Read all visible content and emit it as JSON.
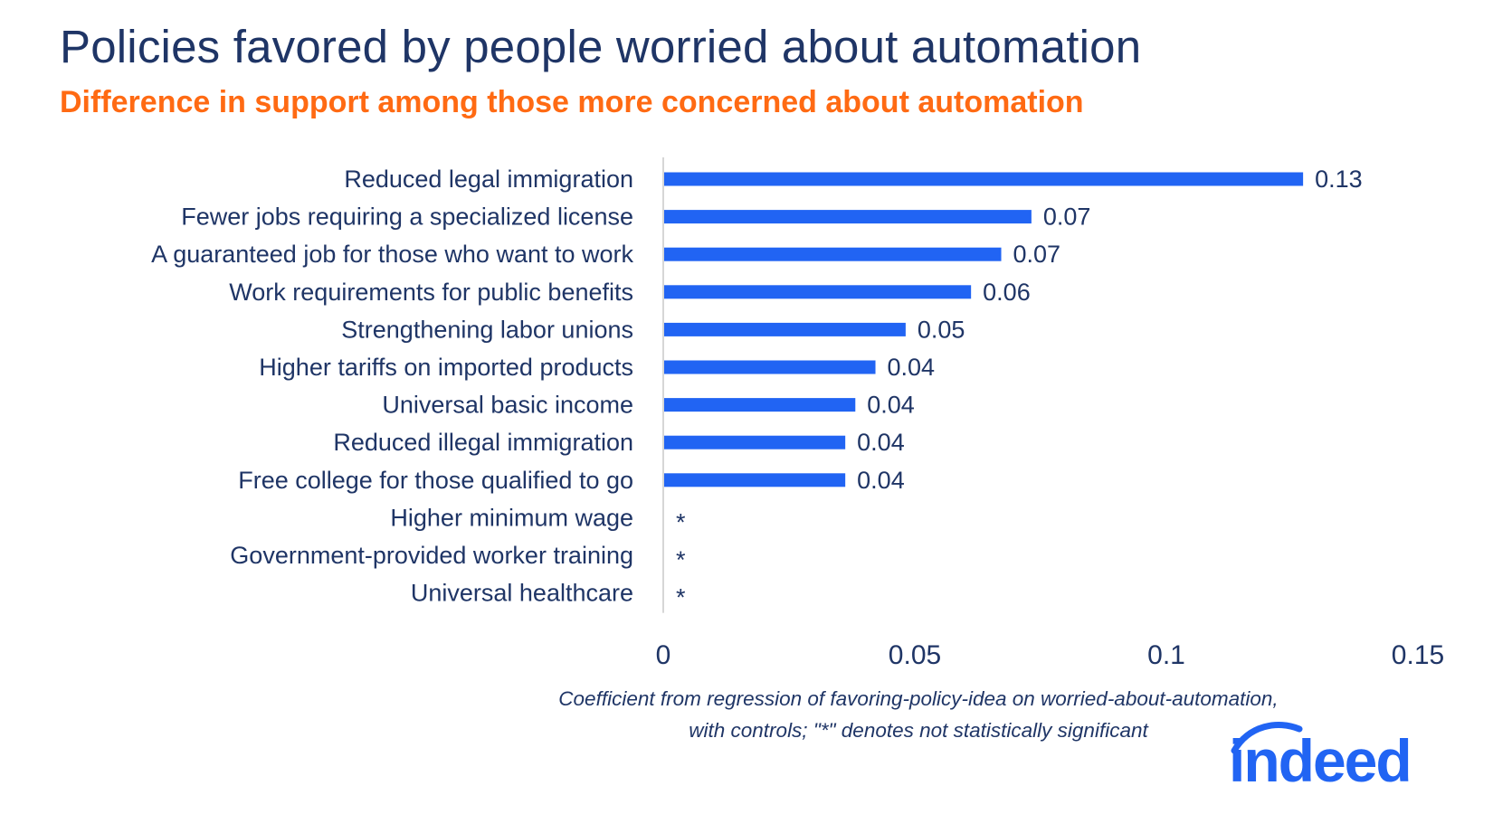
{
  "title": "Policies favored by people worried about automation",
  "subtitle": "Difference in support among those more concerned about automation",
  "note_line1": "Coefficient from regression of favoring-policy-idea  on worried-about-automation,",
  "note_line2": "with controls; \"*\" denotes not statistically significant",
  "logo_text": "indeed",
  "colors": {
    "bar": "#2164f3",
    "title": "#1f3566",
    "subtitle": "#ff6a13",
    "axis": "#c8c8c8"
  },
  "chart_data": {
    "type": "bar",
    "orientation": "horizontal",
    "categories": [
      "Reduced legal immigration",
      "Fewer jobs requiring a specialized license",
      "A guaranteed job for those who want to work",
      "Work requirements for public benefits",
      "Strengthening labor unions",
      "Higher tariffs on imported products",
      "Universal basic income",
      "Reduced illegal immigration",
      "Free college for those qualified to go",
      "Higher minimum wage",
      "Government-provided worker training",
      "Universal healthcare"
    ],
    "values": [
      0.127,
      0.073,
      0.067,
      0.061,
      0.048,
      0.042,
      0.038,
      0.036,
      0.036,
      null,
      null,
      null
    ],
    "value_labels": [
      "0.13",
      "0.07",
      "0.07",
      "0.06",
      "0.05",
      "0.04",
      "0.04",
      "0.04",
      "0.04",
      "*",
      "*",
      "*"
    ],
    "xlim": [
      0,
      0.15
    ],
    "xticks": [
      0,
      0.05,
      0.1,
      0.15
    ],
    "xtick_labels": [
      "0",
      "0.05",
      "0.1",
      "0.15"
    ],
    "title": "Policies favored by people worried about automation",
    "xlabel": "Coefficient from regression of favoring-policy-idea  on worried-about-automation, with controls; \"*\" denotes not statistically significant",
    "ylabel": "",
    "grid": false
  }
}
